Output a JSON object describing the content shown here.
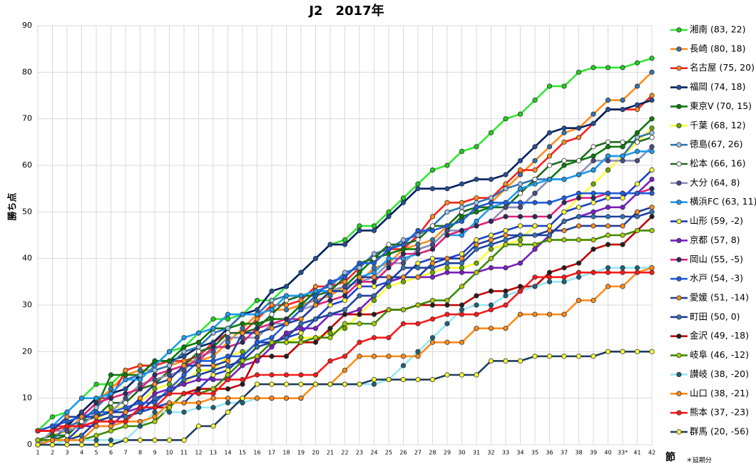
{
  "chart_data": {
    "type": "line",
    "title": "J2　2017年",
    "y_label": "勝ち点",
    "x_label": "節",
    "note": "＊延期分",
    "categories": [
      "1",
      "2",
      "3",
      "4",
      "5",
      "6",
      "7",
      "8",
      "9",
      "10",
      "11",
      "12",
      "13",
      "14",
      "15",
      "16",
      "17",
      "18",
      "19",
      "20",
      "21",
      "22",
      "23",
      "24",
      "25",
      "26",
      "27",
      "28",
      "29",
      "30",
      "31",
      "32",
      "33",
      "34",
      "35",
      "36",
      "37",
      "38",
      "39",
      "40",
      "33*",
      "41",
      "42"
    ],
    "ylim": [
      0,
      90
    ],
    "yticks": [
      0,
      10,
      20,
      30,
      40,
      50,
      60,
      70,
      80,
      90
    ],
    "grid": true,
    "legend": "right",
    "series": [
      {
        "name": "湘南 (83, 22)",
        "color": "#33e633",
        "marker_color": "#22cc22",
        "values": [
          3,
          6,
          7,
          10,
          13,
          13,
          16,
          17,
          17,
          20,
          21,
          24,
          27,
          27,
          28,
          31,
          31,
          34,
          37,
          40,
          43,
          44,
          47,
          47,
          50,
          53,
          56,
          59,
          60,
          63,
          64,
          67,
          70,
          71,
          74,
          77,
          77,
          80,
          81,
          81,
          81,
          82,
          83
        ]
      },
      {
        "name": "長崎 (80, 18)",
        "color": "#ff8c1a",
        "marker_color": "#2e75b6",
        "values": [
          1,
          2,
          3,
          6,
          9,
          12,
          15,
          16,
          16,
          17,
          18,
          18,
          19,
          22,
          25,
          28,
          29,
          29,
          30,
          31,
          32,
          34,
          35,
          38,
          39,
          42,
          43,
          44,
          47,
          50,
          51,
          52,
          55,
          58,
          61,
          64,
          67,
          68,
          71,
          74,
          74,
          77,
          80
        ]
      },
      {
        "name": "名古屋 (75, 20)",
        "color": "#ff2020",
        "marker_color": "#ff8c1a",
        "values": [
          3,
          4,
          4,
          7,
          10,
          10,
          16,
          17,
          17,
          18,
          18,
          19,
          22,
          24,
          24,
          27,
          30,
          30,
          31,
          34,
          34,
          35,
          38,
          41,
          42,
          42,
          45,
          49,
          52,
          52,
          53,
          53,
          56,
          59,
          59,
          62,
          65,
          66,
          69,
          72,
          72,
          72,
          75
        ]
      },
      {
        "name": "福岡 (74, 18)",
        "color": "#002060",
        "marker_color": "#1f4e9c",
        "values": [
          0,
          3,
          4,
          7,
          10,
          11,
          12,
          15,
          18,
          18,
          19,
          21,
          22,
          25,
          28,
          29,
          33,
          34,
          37,
          40,
          43,
          43,
          46,
          46,
          49,
          52,
          55,
          55,
          55,
          56,
          57,
          57,
          58,
          61,
          64,
          67,
          68,
          68,
          69,
          72,
          72,
          73,
          74
        ]
      },
      {
        "name": "東京V (70, 15)",
        "color": "#0b7a0b",
        "marker_color": "#0b7a0b",
        "values": [
          1,
          2,
          2,
          5,
          8,
          15,
          15,
          15,
          18,
          18,
          21,
          22,
          25,
          25,
          26,
          26,
          27,
          27,
          30,
          33,
          33,
          34,
          37,
          40,
          41,
          42,
          42,
          43,
          46,
          49,
          50,
          51,
          51,
          51,
          54,
          57,
          60,
          61,
          62,
          64,
          64,
          67,
          70
        ]
      },
      {
        "name": "千葉 (68, 12)",
        "color": "#ffff33",
        "marker_color": "#66aa00",
        "values": [
          0,
          1,
          2,
          2,
          5,
          8,
          8,
          9,
          12,
          13,
          13,
          16,
          16,
          19,
          20,
          21,
          22,
          22,
          23,
          23,
          24,
          25,
          28,
          31,
          34,
          35,
          36,
          37,
          38,
          38,
          39,
          42,
          43,
          44,
          47,
          47,
          50,
          53,
          56,
          59,
          62,
          65,
          68
        ]
      },
      {
        "name": "徳島(67, 26)",
        "color": "#2e75b6",
        "marker_color": "#9dc3e6",
        "values": [
          0,
          1,
          4,
          5,
          8,
          11,
          14,
          15,
          16,
          17,
          20,
          21,
          24,
          25,
          28,
          28,
          31,
          32,
          32,
          33,
          34,
          37,
          38,
          41,
          42,
          44,
          45,
          47,
          50,
          51,
          52,
          53,
          55,
          56,
          57,
          57,
          57,
          58,
          59,
          62,
          62,
          66,
          67
        ]
      },
      {
        "name": "松本 (66, 16)",
        "color": "#1e6b1e",
        "marker_color": "#ffffff",
        "values": [
          1,
          1,
          2,
          5,
          6,
          9,
          9,
          12,
          13,
          16,
          17,
          20,
          21,
          24,
          24,
          25,
          28,
          31,
          32,
          32,
          33,
          36,
          39,
          40,
          43,
          43,
          44,
          47,
          47,
          50,
          51,
          51,
          51,
          54,
          57,
          60,
          61,
          61,
          64,
          65,
          65,
          65,
          66
        ]
      },
      {
        "name": "大分 (64, 8)",
        "color": "#9090b8",
        "marker_color": "#4a4a8a",
        "values": [
          0,
          3,
          3,
          4,
          7,
          7,
          10,
          13,
          14,
          15,
          16,
          19,
          20,
          23,
          23,
          23,
          26,
          26,
          29,
          30,
          33,
          34,
          35,
          36,
          39,
          39,
          42,
          43,
          46,
          46,
          47,
          48,
          51,
          51,
          54,
          57,
          57,
          58,
          61,
          61,
          61,
          61,
          64
        ]
      },
      {
        "name": "横浜FC (63, 11)",
        "color": "#1e9cf0",
        "marker_color": "#1e9cf0",
        "values": [
          3,
          4,
          7,
          10,
          10,
          11,
          14,
          14,
          17,
          20,
          23,
          24,
          25,
          28,
          28,
          28,
          29,
          32,
          32,
          33,
          33,
          33,
          36,
          37,
          40,
          40,
          41,
          42,
          45,
          45,
          48,
          51,
          52,
          55,
          56,
          57,
          57,
          58,
          59,
          62,
          62,
          63,
          63
        ]
      },
      {
        "name": "山形 (59, -2)",
        "color": "#1f3fcc",
        "marker_color": "#ffff33",
        "values": [
          0,
          1,
          1,
          4,
          5,
          6,
          6,
          7,
          8,
          9,
          9,
          12,
          15,
          16,
          19,
          22,
          22,
          23,
          24,
          27,
          30,
          31,
          34,
          34,
          35,
          36,
          39,
          40,
          40,
          41,
          44,
          45,
          46,
          47,
          47,
          47,
          50,
          51,
          52,
          53,
          53,
          56,
          59
        ]
      },
      {
        "name": "京都 (57, 8)",
        "color": "#7a1fc0",
        "marker_color": "#7a1fc0",
        "values": [
          3,
          3,
          4,
          4,
          4,
          4,
          7,
          8,
          11,
          12,
          13,
          14,
          14,
          14,
          17,
          18,
          21,
          24,
          25,
          25,
          28,
          28,
          29,
          32,
          35,
          36,
          36,
          36,
          37,
          37,
          37,
          38,
          38,
          39,
          42,
          45,
          48,
          49,
          50,
          51,
          51,
          54,
          57
        ]
      },
      {
        "name": "岡山 (55, -5)",
        "color": "#e0207a",
        "marker_color": "#1f3060",
        "values": [
          3,
          4,
          5,
          6,
          9,
          10,
          11,
          12,
          15,
          16,
          17,
          18,
          21,
          21,
          22,
          25,
          26,
          27,
          27,
          30,
          31,
          32,
          35,
          35,
          38,
          41,
          41,
          42,
          45,
          46,
          47,
          48,
          49,
          49,
          49,
          49,
          52,
          53,
          53,
          54,
          54,
          54,
          55
        ]
      },
      {
        "name": "水戸 (54, -3)",
        "color": "#1f5fe0",
        "marker_color": "#1f5fe0",
        "values": [
          3,
          4,
          5,
          6,
          7,
          7,
          8,
          9,
          9,
          12,
          15,
          18,
          18,
          19,
          19,
          22,
          23,
          26,
          29,
          32,
          35,
          36,
          39,
          39,
          42,
          43,
          46,
          46,
          47,
          48,
          51,
          52,
          52,
          52,
          52,
          52,
          53,
          54,
          54,
          54,
          54,
          54,
          54
        ]
      },
      {
        "name": "愛媛 (51, -14)",
        "color": "#1f3fa0",
        "marker_color": "#ff8c1a",
        "values": [
          3,
          3,
          6,
          6,
          6,
          7,
          7,
          10,
          13,
          14,
          17,
          17,
          17,
          18,
          24,
          24,
          25,
          26,
          27,
          30,
          33,
          33,
          36,
          36,
          36,
          36,
          36,
          39,
          40,
          40,
          43,
          44,
          45,
          45,
          45,
          46,
          46,
          47,
          47,
          47,
          47,
          50,
          51
        ]
      },
      {
        "name": "町田 (50, 0)",
        "color": "#1f3f9c",
        "marker_color": "#2e75b6",
        "values": [
          0,
          1,
          1,
          2,
          5,
          6,
          6,
          7,
          10,
          11,
          14,
          15,
          16,
          17,
          18,
          21,
          22,
          23,
          26,
          27,
          28,
          29,
          32,
          32,
          35,
          38,
          38,
          38,
          39,
          39,
          42,
          43,
          44,
          45,
          45,
          45,
          48,
          49,
          49,
          49,
          49,
          49,
          50
        ]
      },
      {
        "name": "金沢 (49, -18)",
        "color": "#c00000",
        "marker_color": "#1f1f1f",
        "values": [
          3,
          3,
          4,
          4,
          5,
          5,
          5,
          8,
          8,
          8,
          11,
          12,
          12,
          12,
          13,
          19,
          19,
          19,
          22,
          22,
          25,
          28,
          28,
          28,
          29,
          29,
          30,
          30,
          30,
          30,
          32,
          33,
          33,
          34,
          34,
          37,
          38,
          39,
          42,
          43,
          43,
          46,
          49
        ]
      },
      {
        "name": "岐阜 (46, -12)",
        "color": "#3a8a00",
        "marker_color": "#aacc00",
        "values": [
          1,
          1,
          1,
          1,
          2,
          3,
          4,
          4,
          5,
          8,
          11,
          11,
          12,
          15,
          18,
          19,
          22,
          22,
          22,
          23,
          23,
          26,
          26,
          26,
          29,
          29,
          30,
          31,
          31,
          34,
          37,
          40,
          43,
          43,
          43,
          44,
          44,
          44,
          44,
          45,
          45,
          46,
          46
        ]
      },
      {
        "name": "讃岐 (38, -20)",
        "color": "#99e6f5",
        "marker_color": "#1f5f7a",
        "values": [
          0,
          0,
          1,
          1,
          1,
          1,
          1,
          4,
          7,
          7,
          7,
          8,
          8,
          9,
          9,
          10,
          10,
          10,
          10,
          13,
          13,
          13,
          13,
          13,
          14,
          17,
          20,
          23,
          26,
          29,
          30,
          30,
          32,
          33,
          34,
          35,
          35,
          36,
          37,
          38,
          38,
          38,
          38
        ]
      },
      {
        "name": "山口 (38, -21)",
        "color": "#ff8c1a",
        "marker_color": "#ff8c1a",
        "values": [
          0,
          1,
          1,
          1,
          4,
          4,
          5,
          5,
          6,
          9,
          9,
          9,
          10,
          10,
          10,
          10,
          10,
          10,
          10,
          13,
          13,
          16,
          19,
          19,
          19,
          19,
          19,
          22,
          22,
          22,
          25,
          25,
          25,
          28,
          28,
          28,
          28,
          31,
          31,
          34,
          34,
          37,
          38
        ]
      },
      {
        "name": "熊本 (37, -23)",
        "color": "#ff1a1a",
        "marker_color": "#ff1a1a",
        "values": [
          3,
          3,
          4,
          4,
          5,
          5,
          5,
          8,
          8,
          11,
          11,
          11,
          11,
          14,
          14,
          15,
          15,
          15,
          15,
          15,
          18,
          19,
          22,
          23,
          23,
          26,
          26,
          27,
          28,
          28,
          28,
          29,
          30,
          33,
          36,
          36,
          36,
          37,
          37,
          37,
          37,
          37,
          37
        ]
      },
      {
        "name": "群馬 (20, -56)",
        "color": "#1f3f5f",
        "marker_color": "#ffff33",
        "values": [
          0,
          0,
          0,
          0,
          0,
          0,
          1,
          1,
          1,
          1,
          1,
          4,
          4,
          7,
          10,
          13,
          13,
          13,
          13,
          13,
          13,
          13,
          13,
          14,
          14,
          14,
          14,
          14,
          15,
          15,
          15,
          18,
          18,
          18,
          19,
          19,
          19,
          19,
          19,
          20,
          20,
          20,
          20
        ]
      }
    ]
  }
}
